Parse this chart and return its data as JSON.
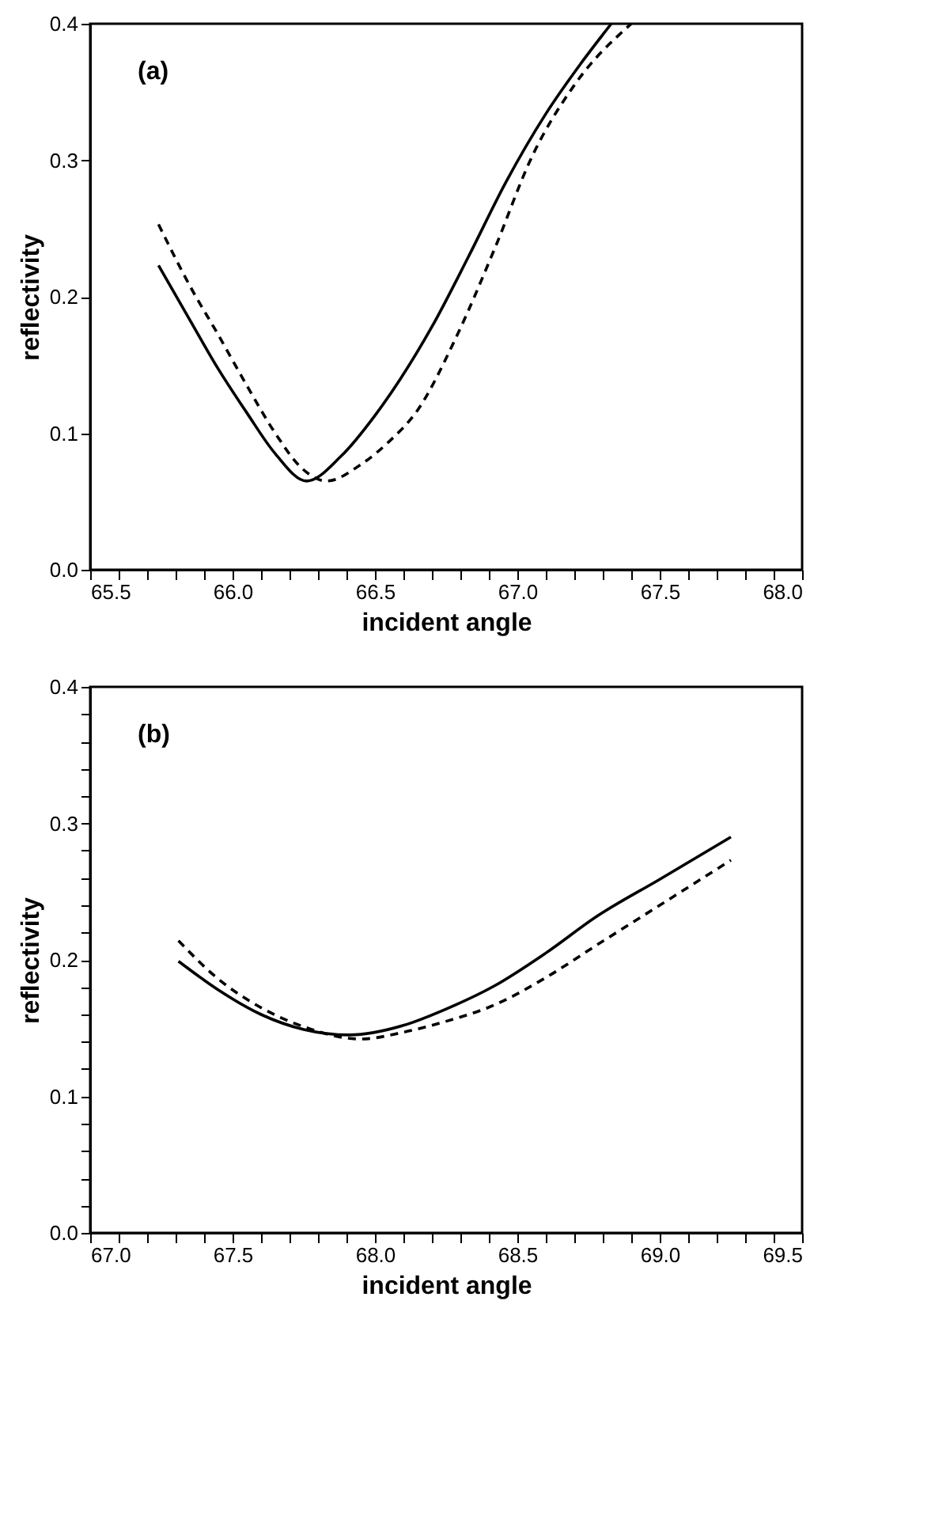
{
  "chart_data": [
    {
      "type": "line",
      "xlabel": "incident angle",
      "ylabel": "reflectivity",
      "annotations": [
        "(a)"
      ],
      "xlim": [
        65.5,
        68.0
      ],
      "ylim": [
        0.0,
        0.4
      ],
      "xticks": [
        65.5,
        {
          "value": 65.6,
          "label": null
        },
        {
          "value": 65.7,
          "label": null
        },
        {
          "value": 65.8,
          "label": null
        },
        {
          "value": 65.9,
          "label": null
        },
        {
          "value": 66.0,
          "label": "66.0"
        },
        {
          "value": 66.1,
          "label": null
        },
        {
          "value": 66.2,
          "label": null
        },
        {
          "value": 66.3,
          "label": null
        },
        {
          "value": 66.4,
          "label": null
        },
        66.5,
        {
          "value": 66.6,
          "label": null
        },
        {
          "value": 66.7,
          "label": null
        },
        {
          "value": 66.8,
          "label": null
        },
        {
          "value": 66.9,
          "label": null
        },
        {
          "value": 67.0,
          "label": "67.0"
        },
        {
          "value": 67.1,
          "label": null
        },
        {
          "value": 67.2,
          "label": null
        },
        {
          "value": 67.3,
          "label": null
        },
        {
          "value": 67.4,
          "label": null
        },
        67.5,
        {
          "value": 67.6,
          "label": null
        },
        {
          "value": 67.7,
          "label": null
        },
        {
          "value": 67.8,
          "label": null
        },
        {
          "value": 67.9,
          "label": null
        },
        {
          "value": 68.0,
          "label": "68.0"
        }
      ],
      "yticks": [
        {
          "value": 0.0,
          "label": "0.0"
        },
        0.1,
        0.2,
        0.3,
        0.4
      ],
      "grid": false,
      "legend": false,
      "series": [
        {
          "color": "#000000",
          "line_style": "solid",
          "x": [
            65.74,
            65.85,
            65.95,
            66.05,
            66.15,
            66.26,
            66.38,
            66.5,
            66.59,
            66.7,
            66.83,
            66.96,
            67.1,
            67.22,
            67.33
          ],
          "values": [
            0.223,
            0.183,
            0.147,
            0.115,
            0.085,
            0.065,
            0.083,
            0.113,
            0.14,
            0.178,
            0.23,
            0.284,
            0.334,
            0.37,
            0.4
          ]
        },
        {
          "color": "#000000",
          "line_style": "dashed",
          "x": [
            65.74,
            65.85,
            65.95,
            66.05,
            66.15,
            66.24,
            66.33,
            66.45,
            66.55,
            66.65,
            66.78,
            66.92,
            67.05,
            67.2,
            67.4
          ],
          "values": [
            0.253,
            0.208,
            0.172,
            0.135,
            0.1,
            0.075,
            0.065,
            0.077,
            0.094,
            0.117,
            0.168,
            0.235,
            0.302,
            0.355,
            0.4
          ]
        }
      ]
    },
    {
      "type": "line",
      "xlabel": "incident angle",
      "ylabel": "reflectivity",
      "annotations": [
        "(b)"
      ],
      "xlim": [
        67.0,
        69.5
      ],
      "ylim": [
        0.0,
        0.4
      ],
      "xticks": [
        {
          "value": 67.0,
          "label": "67.0"
        },
        {
          "value": 67.1,
          "label": null
        },
        {
          "value": 67.2,
          "label": null
        },
        {
          "value": 67.3,
          "label": null
        },
        {
          "value": 67.4,
          "label": null
        },
        67.5,
        {
          "value": 67.6,
          "label": null
        },
        {
          "value": 67.7,
          "label": null
        },
        {
          "value": 67.8,
          "label": null
        },
        {
          "value": 67.9,
          "label": null
        },
        {
          "value": 68.0,
          "label": "68.0"
        },
        {
          "value": 68.1,
          "label": null
        },
        {
          "value": 68.2,
          "label": null
        },
        {
          "value": 68.3,
          "label": null
        },
        {
          "value": 68.4,
          "label": null
        },
        68.5,
        {
          "value": 68.6,
          "label": null
        },
        {
          "value": 68.7,
          "label": null
        },
        {
          "value": 68.8,
          "label": null
        },
        {
          "value": 68.9,
          "label": null
        },
        {
          "value": 69.0,
          "label": "69.0"
        },
        {
          "value": 69.1,
          "label": null
        },
        {
          "value": 69.2,
          "label": null
        },
        {
          "value": 69.3,
          "label": null
        },
        {
          "value": 69.4,
          "label": null
        },
        69.5
      ],
      "yticks": [
        {
          "value": 0.0,
          "label": "0.0"
        },
        {
          "value": 0.02,
          "label": null
        },
        {
          "value": 0.04,
          "label": null
        },
        {
          "value": 0.06,
          "label": null
        },
        {
          "value": 0.08,
          "label": null
        },
        0.1,
        {
          "value": 0.12,
          "label": null
        },
        {
          "value": 0.14,
          "label": null
        },
        {
          "value": 0.16,
          "label": null
        },
        {
          "value": 0.18,
          "label": null
        },
        0.2,
        {
          "value": 0.22,
          "label": null
        },
        {
          "value": 0.24,
          "label": null
        },
        {
          "value": 0.26,
          "label": null
        },
        {
          "value": 0.28,
          "label": null
        },
        0.3,
        {
          "value": 0.32,
          "label": null
        },
        {
          "value": 0.34,
          "label": null
        },
        {
          "value": 0.36,
          "label": null
        },
        {
          "value": 0.38,
          "label": null
        },
        0.4
      ],
      "grid": false,
      "legend": false,
      "series": [
        {
          "color": "#000000",
          "line_style": "solid",
          "x": [
            67.31,
            67.45,
            67.6,
            67.75,
            67.91,
            68.1,
            68.25,
            68.42,
            68.6,
            68.78,
            69.0,
            69.25
          ],
          "values": [
            0.199,
            0.178,
            0.16,
            0.149,
            0.145,
            0.152,
            0.164,
            0.181,
            0.205,
            0.232,
            0.259,
            0.29
          ]
        },
        {
          "color": "#000000",
          "line_style": "dashed",
          "x": [
            67.31,
            67.45,
            67.6,
            67.75,
            67.95,
            68.1,
            68.25,
            68.42,
            68.6,
            68.78,
            69.0,
            69.25
          ],
          "values": [
            0.214,
            0.186,
            0.165,
            0.151,
            0.142,
            0.147,
            0.155,
            0.167,
            0.187,
            0.211,
            0.24,
            0.273
          ]
        }
      ]
    }
  ]
}
